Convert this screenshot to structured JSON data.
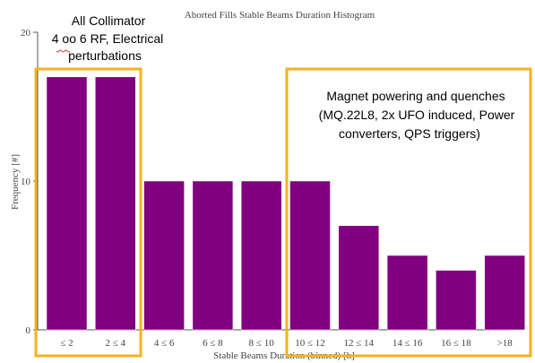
{
  "chart_data": {
    "type": "bar",
    "title": "Aborted Fills Stable Beams Duration Histogram",
    "xlabel": "Stable Beams Duration (binned) [h]",
    "ylabel": "Frequency [#]",
    "categories": [
      "≤ 2",
      "2 ≤ 4",
      "4 ≤ 6",
      "6 ≤ 8",
      "8 ≤ 10",
      "10 ≤ 12",
      "12 ≤ 14",
      "14 ≤ 16",
      "16 ≤ 18",
      ">18"
    ],
    "values": [
      17,
      17,
      10,
      10,
      10,
      10,
      7,
      5,
      4,
      5
    ],
    "ylim": [
      0,
      20
    ],
    "yticks": [
      0,
      10,
      20
    ],
    "grid": false,
    "bar_color": "#800080"
  },
  "annotations": {
    "left": {
      "lines": [
        "All Collimator",
        "4 oo 6 RF, Electrical",
        "perturbations"
      ],
      "highlight_word": "oo",
      "box_color": "#f5b21e"
    },
    "right": {
      "lines": [
        "Magnet powering and quenches",
        "(MQ.22L8, 2x UFO induced, Power",
        "converters, QPS triggers)"
      ],
      "box_color": "#f5b21e"
    }
  }
}
